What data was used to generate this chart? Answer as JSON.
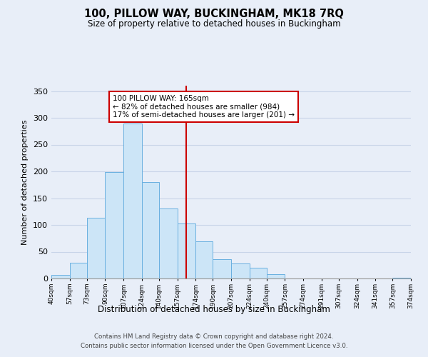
{
  "title": "100, PILLOW WAY, BUCKINGHAM, MK18 7RQ",
  "subtitle": "Size of property relative to detached houses in Buckingham",
  "xlabel": "Distribution of detached houses by size in Buckingham",
  "ylabel": "Number of detached properties",
  "bar_edges": [
    40,
    57,
    73,
    90,
    107,
    124,
    140,
    157,
    174,
    190,
    207,
    224,
    240,
    257,
    274,
    291,
    307,
    324,
    341,
    357,
    374
  ],
  "bar_heights": [
    7,
    29,
    113,
    199,
    290,
    180,
    131,
    103,
    70,
    36,
    28,
    20,
    8,
    0,
    0,
    0,
    0,
    0,
    0,
    2
  ],
  "bar_face_color": "#cce5f7",
  "bar_edge_color": "#6ab0e0",
  "grid_color": "#c8d4e8",
  "background_color": "#e8eef8",
  "vline_x": 165,
  "vline_color": "#cc0000",
  "annotation_box_color": "#cc0000",
  "annotation_lines": [
    "100 PILLOW WAY: 165sqm",
    "← 82% of detached houses are smaller (984)",
    "17% of semi-detached houses are larger (201) →"
  ],
  "tick_labels": [
    "40sqm",
    "57sqm",
    "73sqm",
    "90sqm",
    "107sqm",
    "124sqm",
    "140sqm",
    "157sqm",
    "174sqm",
    "190sqm",
    "207sqm",
    "224sqm",
    "240sqm",
    "257sqm",
    "274sqm",
    "291sqm",
    "307sqm",
    "324sqm",
    "341sqm",
    "357sqm",
    "374sqm"
  ],
  "ylim": [
    0,
    360
  ],
  "yticks": [
    0,
    50,
    100,
    150,
    200,
    250,
    300,
    350
  ],
  "footnote1": "Contains HM Land Registry data © Crown copyright and database right 2024.",
  "footnote2": "Contains public sector information licensed under the Open Government Licence v3.0."
}
